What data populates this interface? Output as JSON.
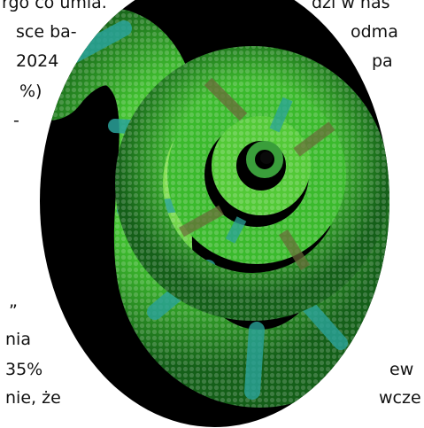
{
  "left_column": {
    "lines": [
      "rgo co umia.",
      "sce ba-",
      "2024",
      "%)",
      "-",
      "”",
      "nia",
      "35%",
      "nie, że"
    ]
  },
  "right_column": {
    "lines": [
      "dzi w nas",
      "odma",
      "pa",
      "ew",
      "wcze"
    ]
  },
  "illustration": {
    "subject": "coiled chameleon tail",
    "colors": {
      "background": "#000000",
      "green_light": "#8fe04a",
      "green_mid": "#39b82b",
      "green_dark": "#1a7a1f",
      "teal": "#2aa39a",
      "brown_band": "#6b6a3a"
    }
  }
}
